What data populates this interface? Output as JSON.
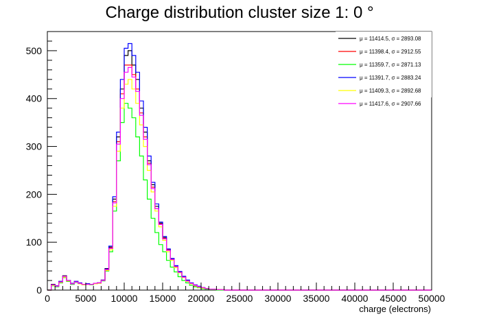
{
  "chart_data": {
    "type": "line",
    "title": "Charge distribution cluster size 1: 0 °",
    "xlabel": "charge (electrons)",
    "ylabel": "",
    "xlim": [
      0,
      50000
    ],
    "ylim": [
      0,
      540
    ],
    "xticks": [
      0,
      5000,
      10000,
      15000,
      20000,
      25000,
      30000,
      35000,
      40000,
      45000,
      50000
    ],
    "yticks": [
      0,
      100,
      200,
      300,
      400,
      500
    ],
    "legend_position": "top-right",
    "grid": false,
    "series": [
      {
        "name": "μ = 11414.5, σ = 2893.08",
        "color": "#000000",
        "points": [
          [
            0,
            0
          ],
          [
            500,
            12
          ],
          [
            1000,
            8
          ],
          [
            1500,
            18
          ],
          [
            2000,
            30
          ],
          [
            2500,
            20
          ],
          [
            3000,
            14
          ],
          [
            3500,
            18
          ],
          [
            4000,
            14
          ],
          [
            4500,
            12
          ],
          [
            5000,
            13
          ],
          [
            5500,
            12
          ],
          [
            6000,
            14
          ],
          [
            6500,
            15
          ],
          [
            7000,
            20
          ],
          [
            7500,
            45
          ],
          [
            8000,
            90
          ],
          [
            8500,
            190
          ],
          [
            9000,
            320
          ],
          [
            9500,
            420
          ],
          [
            10000,
            490
          ],
          [
            10500,
            500
          ],
          [
            11000,
            470
          ],
          [
            11500,
            440
          ],
          [
            12000,
            380
          ],
          [
            12500,
            330
          ],
          [
            13000,
            270
          ],
          [
            13500,
            220
          ],
          [
            14000,
            175
          ],
          [
            14500,
            140
          ],
          [
            15000,
            110
          ],
          [
            15500,
            85
          ],
          [
            16000,
            65
          ],
          [
            16500,
            50
          ],
          [
            17000,
            38
          ],
          [
            17500,
            28
          ],
          [
            18000,
            20
          ],
          [
            18500,
            14
          ],
          [
            19000,
            10
          ],
          [
            19500,
            7
          ],
          [
            20000,
            5
          ],
          [
            20500,
            3
          ],
          [
            21000,
            2
          ],
          [
            22000,
            1
          ],
          [
            23000,
            0
          ],
          [
            50000,
            0
          ]
        ]
      },
      {
        "name": "μ = 11398.4, σ = 2912.55",
        "color": "#ff0000",
        "points": [
          [
            0,
            0
          ],
          [
            500,
            10
          ],
          [
            1000,
            9
          ],
          [
            1500,
            17
          ],
          [
            2000,
            28
          ],
          [
            2500,
            19
          ],
          [
            3000,
            13
          ],
          [
            3500,
            17
          ],
          [
            4000,
            14
          ],
          [
            4500,
            12
          ],
          [
            5000,
            12
          ],
          [
            5500,
            12
          ],
          [
            6000,
            14
          ],
          [
            6500,
            15
          ],
          [
            7000,
            21
          ],
          [
            7500,
            42
          ],
          [
            8000,
            88
          ],
          [
            8500,
            185
          ],
          [
            9000,
            310
          ],
          [
            9500,
            410
          ],
          [
            10000,
            470
          ],
          [
            10500,
            470
          ],
          [
            11000,
            450
          ],
          [
            11500,
            420
          ],
          [
            12000,
            370
          ],
          [
            12500,
            320
          ],
          [
            13000,
            265
          ],
          [
            13500,
            215
          ],
          [
            14000,
            170
          ],
          [
            14500,
            138
          ],
          [
            15000,
            108
          ],
          [
            15500,
            84
          ],
          [
            16000,
            64
          ],
          [
            16500,
            49
          ],
          [
            17000,
            37
          ],
          [
            17500,
            27
          ],
          [
            18000,
            19
          ],
          [
            18500,
            13
          ],
          [
            19000,
            9
          ],
          [
            19500,
            7
          ],
          [
            20000,
            5
          ],
          [
            20500,
            3
          ],
          [
            21000,
            2
          ],
          [
            22000,
            1
          ],
          [
            23000,
            0
          ],
          [
            50000,
            0
          ]
        ]
      },
      {
        "name": "μ = 11359.7, σ = 2871.13",
        "color": "#00ff00",
        "points": [
          [
            0,
            0
          ],
          [
            500,
            9
          ],
          [
            1000,
            7
          ],
          [
            1500,
            15
          ],
          [
            2000,
            26
          ],
          [
            2500,
            18
          ],
          [
            3000,
            12
          ],
          [
            3500,
            16
          ],
          [
            4000,
            13
          ],
          [
            4500,
            11
          ],
          [
            5000,
            12
          ],
          [
            5500,
            11
          ],
          [
            6000,
            13
          ],
          [
            6500,
            14
          ],
          [
            7000,
            19
          ],
          [
            7500,
            40
          ],
          [
            8000,
            80
          ],
          [
            8500,
            165
          ],
          [
            9000,
            270
          ],
          [
            9500,
            350
          ],
          [
            10000,
            390
          ],
          [
            10500,
            380
          ],
          [
            11000,
            360
          ],
          [
            11500,
            320
          ],
          [
            12000,
            280
          ],
          [
            12500,
            230
          ],
          [
            13000,
            190
          ],
          [
            13500,
            150
          ],
          [
            14000,
            120
          ],
          [
            14500,
            95
          ],
          [
            15000,
            80
          ],
          [
            15500,
            62
          ],
          [
            16000,
            48
          ],
          [
            16500,
            38
          ],
          [
            17000,
            28
          ],
          [
            17500,
            20
          ],
          [
            18000,
            15
          ],
          [
            18500,
            10
          ],
          [
            19000,
            7
          ],
          [
            19500,
            5
          ],
          [
            20000,
            3
          ],
          [
            20500,
            2
          ],
          [
            21000,
            1
          ],
          [
            22000,
            0
          ],
          [
            50000,
            0
          ]
        ]
      },
      {
        "name": "μ = 11391.7, σ = 2883.24",
        "color": "#0000ff",
        "points": [
          [
            0,
            0
          ],
          [
            500,
            11
          ],
          [
            1000,
            9
          ],
          [
            1500,
            18
          ],
          [
            2000,
            29
          ],
          [
            2500,
            20
          ],
          [
            3000,
            14
          ],
          [
            3500,
            18
          ],
          [
            4000,
            15
          ],
          [
            4500,
            12
          ],
          [
            5000,
            13
          ],
          [
            5500,
            12
          ],
          [
            6000,
            14
          ],
          [
            6500,
            15
          ],
          [
            7000,
            21
          ],
          [
            7500,
            44
          ],
          [
            8000,
            92
          ],
          [
            8500,
            195
          ],
          [
            9000,
            330
          ],
          [
            9500,
            440
          ],
          [
            10000,
            505
          ],
          [
            10500,
            515
          ],
          [
            11000,
            490
          ],
          [
            11500,
            455
          ],
          [
            12000,
            395
          ],
          [
            12500,
            340
          ],
          [
            13000,
            280
          ],
          [
            13500,
            225
          ],
          [
            14000,
            180
          ],
          [
            14500,
            142
          ],
          [
            15000,
            112
          ],
          [
            15500,
            86
          ],
          [
            16000,
            66
          ],
          [
            16500,
            51
          ],
          [
            17000,
            39
          ],
          [
            17500,
            29
          ],
          [
            18000,
            21
          ],
          [
            18500,
            15
          ],
          [
            19000,
            11
          ],
          [
            19500,
            8
          ],
          [
            20000,
            5
          ],
          [
            20500,
            3
          ],
          [
            21000,
            2
          ],
          [
            22000,
            1
          ],
          [
            23000,
            0
          ],
          [
            50000,
            0
          ]
        ]
      },
      {
        "name": "μ = 11409.3, σ = 2892.68",
        "color": "#ffff00",
        "points": [
          [
            0,
            0
          ],
          [
            500,
            10
          ],
          [
            1000,
            8
          ],
          [
            1500,
            16
          ],
          [
            2000,
            27
          ],
          [
            2500,
            19
          ],
          [
            3000,
            13
          ],
          [
            3500,
            17
          ],
          [
            4000,
            13
          ],
          [
            4500,
            11
          ],
          [
            5000,
            12
          ],
          [
            5500,
            12
          ],
          [
            6000,
            13
          ],
          [
            6500,
            14
          ],
          [
            7000,
            20
          ],
          [
            7500,
            41
          ],
          [
            8000,
            84
          ],
          [
            8500,
            175
          ],
          [
            9000,
            290
          ],
          [
            9500,
            380
          ],
          [
            10000,
            430
          ],
          [
            10500,
            440
          ],
          [
            11000,
            420
          ],
          [
            11500,
            390
          ],
          [
            12000,
            345
          ],
          [
            12500,
            300
          ],
          [
            13000,
            250
          ],
          [
            13500,
            205
          ],
          [
            14000,
            165
          ],
          [
            14500,
            132
          ],
          [
            15000,
            104
          ],
          [
            15500,
            80
          ],
          [
            16000,
            62
          ],
          [
            16500,
            47
          ],
          [
            17000,
            36
          ],
          [
            17500,
            26
          ],
          [
            18000,
            18
          ],
          [
            18500,
            13
          ],
          [
            19000,
            9
          ],
          [
            19500,
            6
          ],
          [
            20000,
            4
          ],
          [
            20500,
            3
          ],
          [
            21000,
            2
          ],
          [
            22000,
            1
          ],
          [
            23000,
            0
          ],
          [
            50000,
            0
          ]
        ]
      },
      {
        "name": "μ = 11417.6, σ = 2907.66",
        "color": "#ff00ff",
        "points": [
          [
            0,
            0
          ],
          [
            500,
            11
          ],
          [
            1000,
            8
          ],
          [
            1500,
            17
          ],
          [
            2000,
            29
          ],
          [
            2500,
            20
          ],
          [
            3000,
            13
          ],
          [
            3500,
            17
          ],
          [
            4000,
            14
          ],
          [
            4500,
            12
          ],
          [
            5000,
            12
          ],
          [
            5500,
            12
          ],
          [
            6000,
            14
          ],
          [
            6500,
            15
          ],
          [
            7000,
            20
          ],
          [
            7500,
            43
          ],
          [
            8000,
            87
          ],
          [
            8500,
            182
          ],
          [
            9000,
            305
          ],
          [
            9500,
            400
          ],
          [
            10000,
            455
          ],
          [
            10500,
            465
          ],
          [
            11000,
            445
          ],
          [
            11500,
            415
          ],
          [
            12000,
            365
          ],
          [
            12500,
            315
          ],
          [
            13000,
            262
          ],
          [
            13500,
            212
          ],
          [
            14000,
            170
          ],
          [
            14500,
            137
          ],
          [
            15000,
            107
          ],
          [
            15500,
            83
          ],
          [
            16000,
            64
          ],
          [
            16500,
            49
          ],
          [
            17000,
            37
          ],
          [
            17500,
            27
          ],
          [
            18000,
            19
          ],
          [
            18500,
            14
          ],
          [
            19000,
            10
          ],
          [
            19500,
            7
          ],
          [
            20000,
            5
          ],
          [
            20500,
            3
          ],
          [
            21000,
            2
          ],
          [
            22000,
            1
          ],
          [
            23000,
            0
          ],
          [
            50000,
            0
          ]
        ]
      }
    ]
  }
}
